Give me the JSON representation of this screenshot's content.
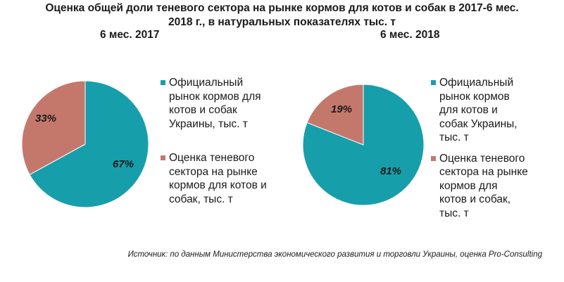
{
  "title_line1": "Оценка общей доли теневого сектора на рынке кормов для котов и собак в 2017-6 мес.",
  "title_line2": "2018 г., в натуральных показателях тыс. т",
  "source": "Источник: по данным Министерства экономического развития и торговли Украины, оценка Pro-Consulting",
  "colors": {
    "official": "#179eab",
    "shadow": "#c4786c"
  },
  "chart_data": [
    {
      "type": "pie",
      "title": "6 мес. 2017",
      "categories": [
        "Официальный рынок кормов для котов и собак Украины, тыс. т",
        "Оценка теневого сектора на рынке кормов для котов и собак, тыс. т"
      ],
      "values": [
        67,
        33
      ],
      "labels": [
        "67%",
        "33%"
      ],
      "legend": {
        "official": [
          "Официальный",
          "рынок кормов для",
          "котов и собак",
          "Украины, тыс. т"
        ],
        "shadow": [
          "Оценка теневого",
          "сектора на рынке",
          "кормов для котов и",
          "собак, тыс. т"
        ]
      }
    },
    {
      "type": "pie",
      "title": "6 мес. 2018",
      "categories": [
        "Официальный рынок кормов для котов и собак Украины, тыс. т",
        "Оценка теневого сектора на рынке кормов для котов и собак, тыс. т"
      ],
      "values": [
        81,
        19
      ],
      "labels": [
        "81%",
        "19%"
      ],
      "legend": {
        "official": [
          "Официальный",
          "рынок кормов",
          "для котов и",
          "собак Украины,",
          "тыс. т"
        ],
        "shadow": [
          "Оценка теневого",
          "сектора на рынке",
          "кормов для",
          "котов и собак,",
          "тыс. т"
        ]
      }
    }
  ]
}
